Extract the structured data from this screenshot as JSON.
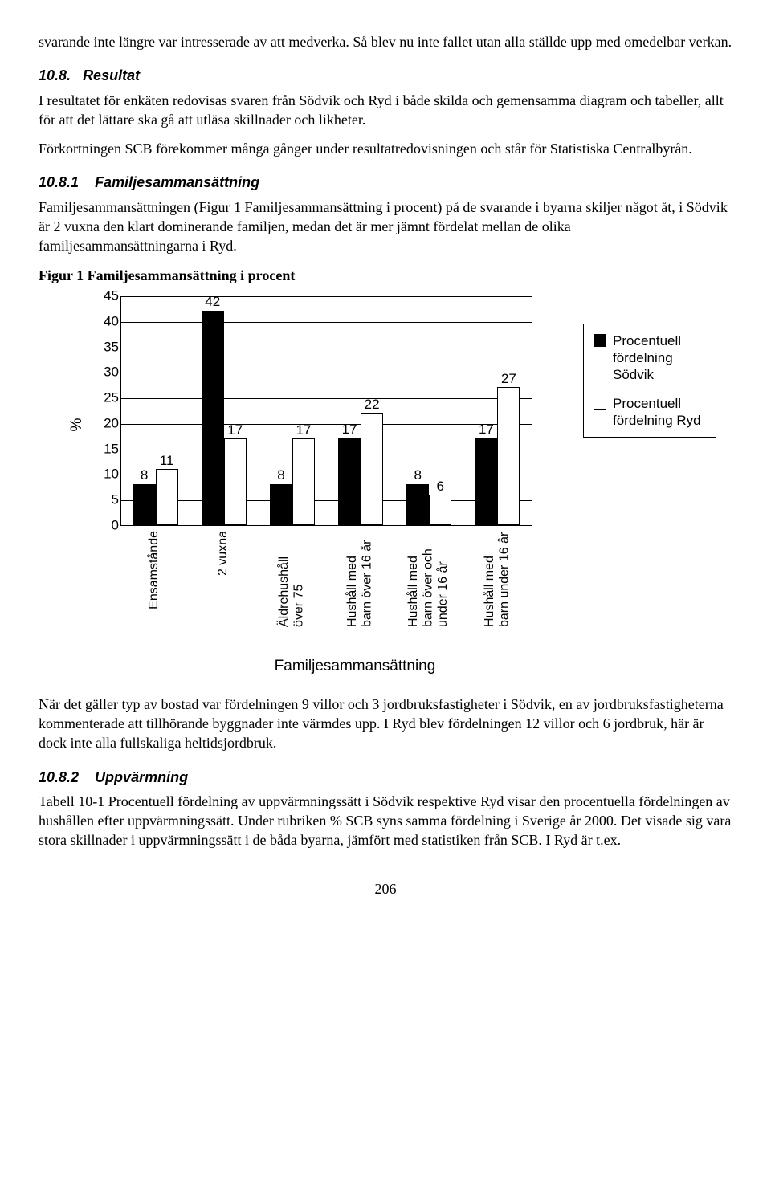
{
  "para_intro": "svarande inte längre var intresserade av att medverka. Så blev nu inte fallet utan alla ställde upp med omedelbar verkan.",
  "sec108": {
    "num": "10.8.",
    "title": "Resultat",
    "p1": "I resultatet för enkäten redovisas svaren från Södvik och Ryd i både skilda och gemensamma diagram och tabeller, allt för att det lättare ska gå att utläsa skillnader och likheter.",
    "p2": "Förkortningen SCB förekommer många gånger under resultatredovisningen och står för Statistiska Centralbyrån."
  },
  "sec1081": {
    "num": "10.8.1",
    "title": "Familjesammansättning",
    "p1": "Familjesammansättningen (Figur 1 Familjesammansättning i procent) på de svarande i byarna skiljer något åt, i Södvik är 2 vuxna den klart dominerande familjen, medan det är mer jämnt fördelat mellan de olika familjesammansättningarna i Ryd."
  },
  "fig_title": "Figur 1 Familjesammansättning i procent",
  "chart": {
    "y_title": "%",
    "x_title": "Familjesammansättning",
    "y_max": 45,
    "y_ticks": [
      0,
      5,
      10,
      15,
      20,
      25,
      30,
      35,
      40,
      45
    ],
    "categories": [
      "Ensamstånde",
      "2 vuxna",
      "Äldrehushåll över 75",
      "Hushåll med barn över 16 år",
      "Hushåll med barn över och under 16 år",
      "Hushåll med barn under 16 år"
    ],
    "series": [
      {
        "name": "Procentuell fördelning Södvik",
        "style": "dark",
        "values": [
          8,
          42,
          8,
          17,
          8,
          17
        ]
      },
      {
        "name": "Procentuell fördelning Ryd",
        "style": "light",
        "values": [
          11,
          17,
          17,
          22,
          6,
          27
        ]
      }
    ],
    "colors": {
      "dark": "#000000",
      "light": "#ffffff",
      "grid": "#000000",
      "bg": "#ffffff"
    },
    "font_family": "Arial",
    "label_fontsize": 17
  },
  "para_after_chart": "När det gäller typ av bostad var fördelningen 9 villor och 3 jordbruksfastigheter i Södvik, en av jordbruksfastigheterna kommenterade att tillhörande byggnader inte värmdes upp. I Ryd blev fördelningen 12 villor och 6 jordbruk, här är dock inte alla fullskaliga heltidsjordbruk.",
  "sec1082": {
    "num": "10.8.2",
    "title": "Uppvärmning",
    "p1": "Tabell 10-1 Procentuell fördelning av uppvärmningssätt i Södvik respektive Ryd visar den procentuella fördelningen av hushållen efter uppvärmningssätt. Under rubriken % SCB syns samma fördelning i Sverige år 2000. Det visade sig vara stora skillnader i uppvärmningssätt i de båda byarna, jämfört med statistiken från SCB. I Ryd är t.ex."
  },
  "page_number": "206"
}
